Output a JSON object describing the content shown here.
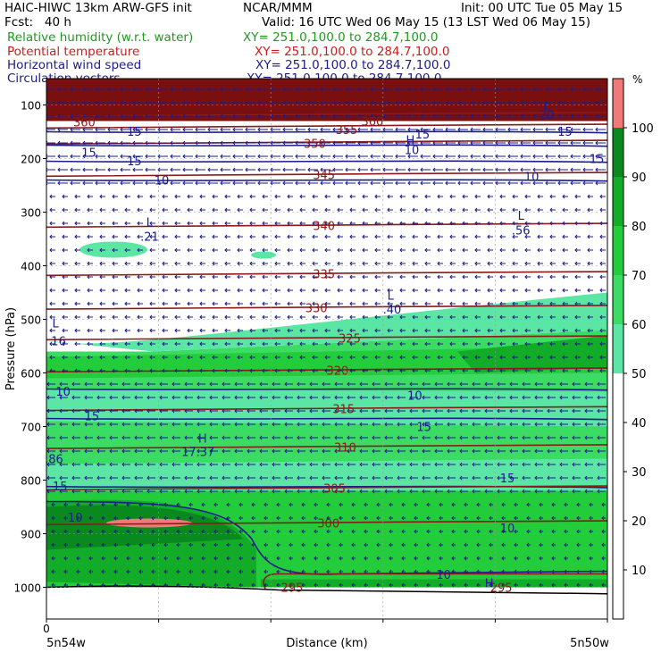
{
  "header": {
    "model_line": "HAIC-HIWC 13km ARW-GFS init",
    "agency": "NCAR/MMM",
    "init": "Init: 00 UTC Tue 05 May 15",
    "fcst": "Fcst:   40 h",
    "valid": "Valid: 16 UTC Wed 06 May 15 (13 LST Wed 06 May 15)"
  },
  "fields": [
    {
      "label": "Relative humidity (w.r.t. water)",
      "xy": "XY= 251.0,100.0 to 284.7,100.0",
      "color": "#1f9a1f"
    },
    {
      "label": "Potential temperature",
      "xy": "XY= 251.0,100.0 to 284.7,100.0",
      "color": "#c81e1e"
    },
    {
      "label": "Horizontal wind speed",
      "xy": "XY= 251.0,100.0 to 284.7,100.0",
      "color": "#1c1c8c"
    },
    {
      "label": "Circulation vectors",
      "xy": "XY= 251.0,100.0 to 284.7,100.0",
      "color": "#1c1c8c"
    }
  ],
  "colorbar": {
    "unit": "%",
    "ticks": [
      10,
      20,
      30,
      40,
      50,
      60,
      70,
      80,
      90,
      100
    ],
    "bins": [
      {
        "from": 0,
        "to": 50,
        "color": "#ffffff"
      },
      {
        "from": 50,
        "to": 60,
        "color": "#5ce6a6"
      },
      {
        "from": 60,
        "to": 70,
        "color": "#3cdc64"
      },
      {
        "from": 70,
        "to": 80,
        "color": "#22cc3a"
      },
      {
        "from": 80,
        "to": 90,
        "color": "#12ac28"
      },
      {
        "from": 90,
        "to": 100,
        "color": "#0a8a1e"
      },
      {
        "from": 100,
        "to": 110,
        "color": "#f07a7a"
      }
    ]
  },
  "chart_data": {
    "type": "heatmap",
    "title": "",
    "xlabel": "Distance (km)",
    "ylabel": "Pressure (hPa)",
    "xlim": [
      0,
      37
    ],
    "ylim": [
      1050,
      70
    ],
    "x_ticks": [
      "0"
    ],
    "x_endpoints": [
      "5n54w",
      "5n50w"
    ],
    "y_ticks": [
      100,
      200,
      300,
      400,
      500,
      600,
      700,
      800,
      900,
      1000
    ],
    "grid": true,
    "theta_labels": [
      {
        "text": "360",
        "x": 2.5,
        "p": 132
      },
      {
        "text": "360",
        "x": 21.5,
        "p": 130
      },
      {
        "text": "355",
        "x": 19.8,
        "p": 146
      },
      {
        "text": "350",
        "x": 17.7,
        "p": 172
      },
      {
        "text": "345",
        "x": 18.3,
        "p": 230
      },
      {
        "text": "340",
        "x": 18.3,
        "p": 325
      },
      {
        "text": "335",
        "x": 18.3,
        "p": 415
      },
      {
        "text": "330",
        "x": 17.8,
        "p": 478
      },
      {
        "text": "325",
        "x": 20.0,
        "p": 535
      },
      {
        "text": "320",
        "x": 19.2,
        "p": 595
      },
      {
        "text": "315",
        "x": 19.6,
        "p": 667
      },
      {
        "text": "310",
        "x": 19.7,
        "p": 738
      },
      {
        "text": "305",
        "x": 19.0,
        "p": 815
      },
      {
        "text": "300",
        "x": 18.6,
        "p": 880
      },
      {
        "text": "295",
        "x": 16.2,
        "p": 1000
      },
      {
        "text": "295",
        "x": 30.0,
        "p": 1000
      }
    ],
    "speed_labels": [
      {
        "text": "15",
        "x": 5.8,
        "p": 149
      },
      {
        "text": "15",
        "x": 2.8,
        "p": 188
      },
      {
        "text": "15",
        "x": 5.8,
        "p": 204
      },
      {
        "text": "15",
        "x": 24.8,
        "p": 154
      },
      {
        "text": "10",
        "x": 24.1,
        "p": 183
      },
      {
        "text": "15",
        "x": 34.2,
        "p": 149
      },
      {
        "text": "15",
        "x": 36.3,
        "p": 200
      },
      {
        "text": "10",
        "x": 7.6,
        "p": 240
      },
      {
        "text": "10",
        "x": 32.0,
        "p": 233
      },
      {
        "text": "10",
        "x": 1.1,
        "p": 634
      },
      {
        "text": "10",
        "x": 24.3,
        "p": 642
      },
      {
        "text": "15",
        "x": 3.0,
        "p": 680
      },
      {
        "text": "15",
        "x": 24.9,
        "p": 700
      },
      {
        "text": "15",
        "x": 0.9,
        "p": 811
      },
      {
        "text": "15",
        "x": 30.4,
        "p": 796
      },
      {
        "text": "10",
        "x": 1.9,
        "p": 869
      },
      {
        "text": "10",
        "x": 30.4,
        "p": 889
      },
      {
        "text": "10",
        "x": 26.2,
        "p": 976
      }
    ],
    "extrema": [
      {
        "text": "L",
        "x": 33.0,
        "p": 102
      },
      {
        "text": "20",
        "x": 33.0,
        "p": 118
      },
      {
        "text": "H",
        "x": 24.0,
        "p": 165
      },
      {
        "text": "L",
        "x": 6.8,
        "p": 318
      },
      {
        "text": ".21",
        "x": 6.8,
        "p": 345
      },
      {
        "text": "L",
        "x": 31.3,
        "p": 306
      },
      {
        "text": ".56",
        "x": 31.3,
        "p": 333
      },
      {
        "text": "L",
        "x": 22.7,
        "p": 455
      },
      {
        "text": ".40",
        "x": 22.8,
        "p": 481
      },
      {
        "text": "L",
        "x": 0.6,
        "p": 507
      },
      {
        "text": "16",
        "x": 0.8,
        "p": 540
      },
      {
        "text": "H",
        "x": 10.3,
        "p": 722
      },
      {
        "text": "17.37",
        "x": 10.0,
        "p": 747
      },
      {
        "text": ".86",
        "x": 0.5,
        "p": 760
      },
      {
        "text": "H",
        "x": 29.2,
        "p": 992
      }
    ]
  }
}
